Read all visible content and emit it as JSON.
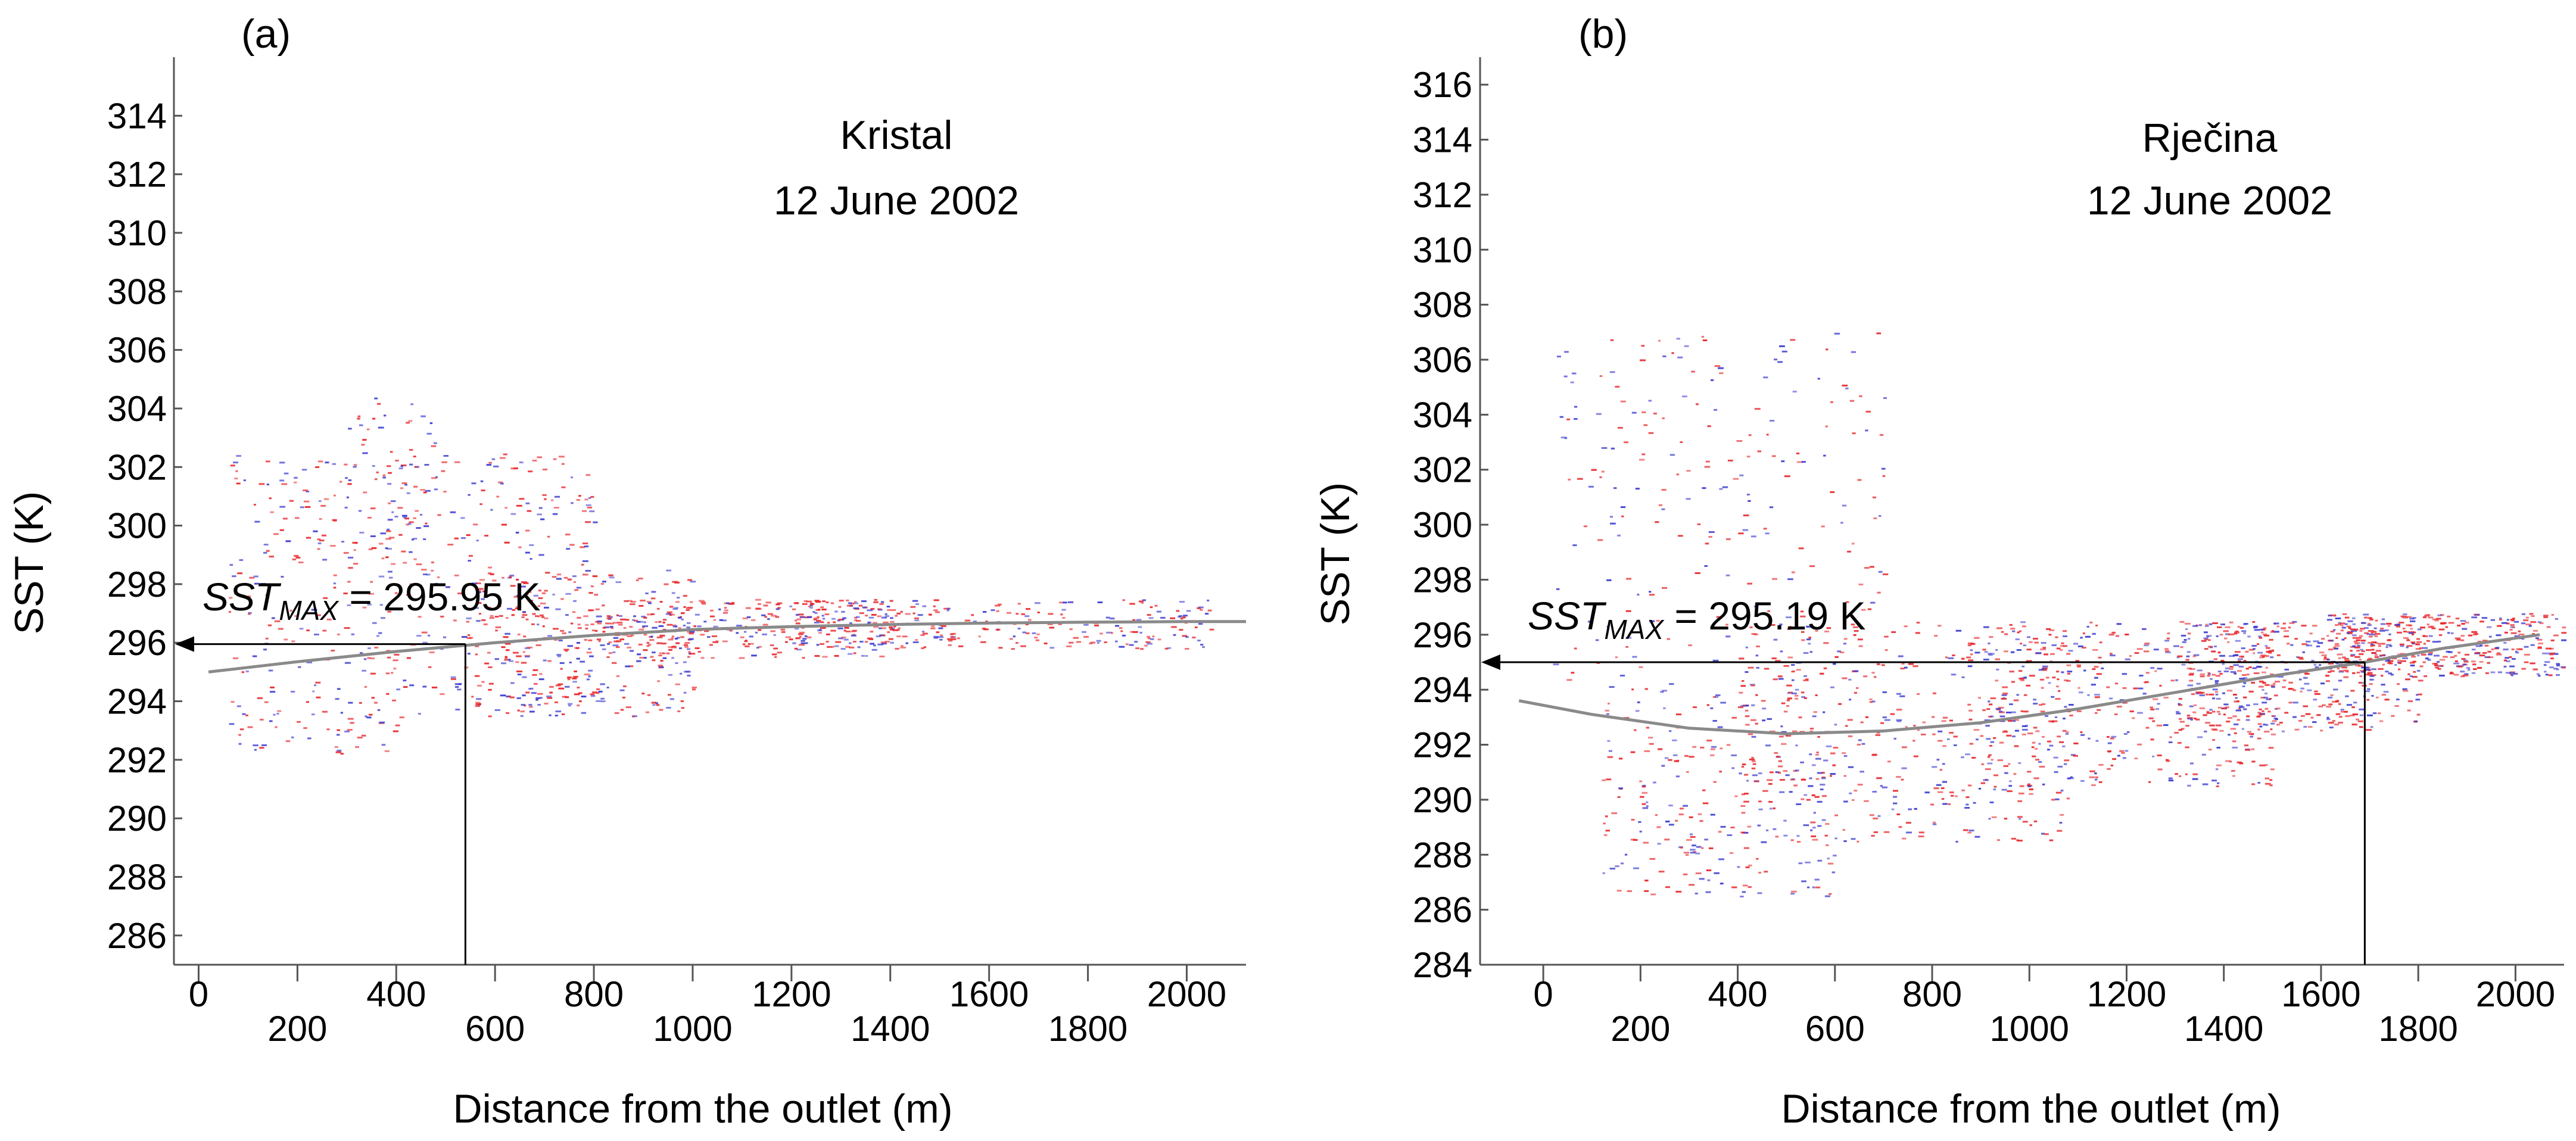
{
  "chart_data": [
    {
      "panel": "(a)",
      "type": "scatter",
      "title": "Kristal",
      "subtitle": "12 June 2002",
      "xlabel": "Distance from the outlet (m)",
      "ylabel": "SST (K)",
      "xlim": [
        -50,
        2120
      ],
      "ylim": [
        285,
        316
      ],
      "xticks_top_row": [
        0,
        400,
        800,
        1200,
        1600,
        2000
      ],
      "xticks_bottom_row": [
        200,
        600,
        1000,
        1400,
        1800
      ],
      "yticks": [
        286,
        288,
        290,
        292,
        294,
        296,
        298,
        300,
        302,
        304,
        306,
        308,
        310,
        312,
        314
      ],
      "annotation": {
        "symbol": "SST",
        "subscript": "MAX",
        "text": " = 295.95 K",
        "x": 540,
        "y": 295.95
      },
      "fit_curve": {
        "x": [
          20,
          200,
          400,
          600,
          800,
          1000,
          1200,
          1400,
          1600,
          1800,
          2000,
          2120
        ],
        "y": [
          295.0,
          295.35,
          295.7,
          296.0,
          296.25,
          296.45,
          296.55,
          296.62,
          296.67,
          296.7,
          296.72,
          296.72
        ]
      },
      "scatter_clusters": [
        {
          "x": [
            60,
            420
          ],
          "y": [
            292.2,
            302.5
          ],
          "n": 260
        },
        {
          "x": [
            300,
            480
          ],
          "y": [
            298,
            304.5
          ],
          "n": 60
        },
        {
          "x": [
            420,
            800
          ],
          "y": [
            293.5,
            302.5
          ],
          "n": 240
        },
        {
          "x": [
            540,
            1000
          ],
          "y": [
            293.5,
            298.5
          ],
          "n": 280
        },
        {
          "x": [
            800,
            1400
          ],
          "y": [
            295.5,
            297.5
          ],
          "n": 320
        },
        {
          "x": [
            1200,
            2050
          ],
          "y": [
            295.8,
            297.5
          ],
          "n": 280
        }
      ]
    },
    {
      "panel": "(b)",
      "type": "scatter",
      "title": "Rječina",
      "subtitle": "12 June 2002",
      "xlabel": "Distance from the outlet (m)",
      "ylabel": "SST (K)",
      "xlim": [
        -130,
        2100
      ],
      "ylim": [
        284,
        317
      ],
      "xticks_top_row": [
        0,
        400,
        800,
        1200,
        1600,
        2000
      ],
      "xticks_bottom_row": [
        200,
        600,
        1000,
        1400,
        1800
      ],
      "yticks": [
        284,
        286,
        288,
        290,
        292,
        294,
        296,
        298,
        300,
        302,
        304,
        306,
        308,
        310,
        312,
        314,
        316
      ],
      "annotation": {
        "symbol": "SST",
        "subscript": "MAX",
        "text": " = 295.19 K",
        "x": 1690,
        "y": 295.0
      },
      "fit_curve": {
        "x": [
          -50,
          100,
          300,
          500,
          700,
          900,
          1100,
          1300,
          1500,
          1690,
          1850,
          2050
        ],
        "y": [
          293.6,
          293.1,
          292.6,
          292.4,
          292.5,
          292.8,
          293.3,
          293.9,
          294.5,
          295.0,
          295.5,
          296.0
        ]
      },
      "scatter_clusters": [
        {
          "x": [
            20,
            700
          ],
          "y": [
            294,
            307
          ],
          "n": 220
        },
        {
          "x": [
            120,
            600
          ],
          "y": [
            286.5,
            294
          ],
          "n": 260
        },
        {
          "x": [
            400,
            1100
          ],
          "y": [
            288.5,
            296.5
          ],
          "n": 420
        },
        {
          "x": [
            900,
            1500
          ],
          "y": [
            290.5,
            296.5
          ],
          "n": 420
        },
        {
          "x": [
            1300,
            1800
          ],
          "y": [
            292.5,
            296.5
          ],
          "n": 420
        },
        {
          "x": [
            1600,
            2100
          ],
          "y": [
            294.5,
            296.8
          ],
          "n": 420
        }
      ]
    }
  ]
}
